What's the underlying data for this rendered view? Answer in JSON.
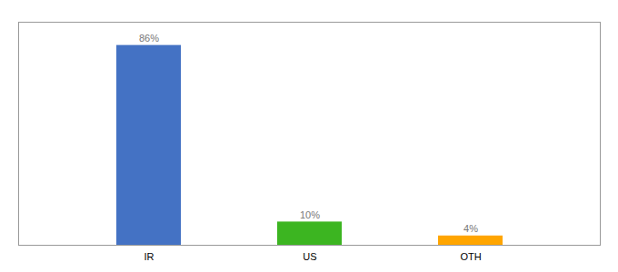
{
  "chart_data": {
    "type": "bar",
    "categories": [
      "IR",
      "US",
      "OTH"
    ],
    "values": [
      86,
      10,
      4
    ],
    "value_labels": [
      "86%",
      "10%",
      "4%"
    ],
    "data_labels": true,
    "colors": [
      "#4472C4",
      "#3CB521",
      "#FFA500"
    ],
    "ylim": [
      0,
      96
    ],
    "tick_labels": "x",
    "grid": false
  }
}
